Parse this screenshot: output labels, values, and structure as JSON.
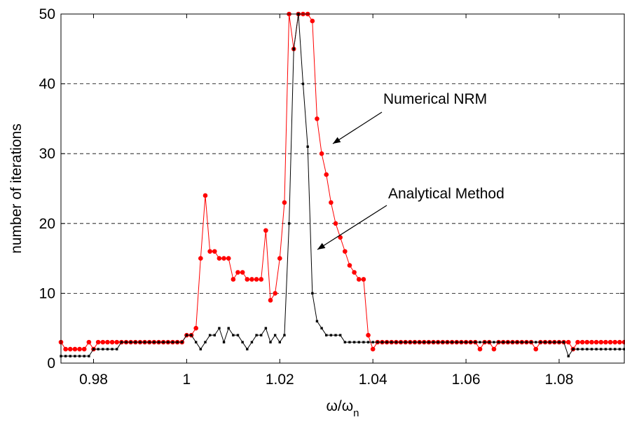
{
  "chart_data": {
    "type": "line",
    "xlabel": "ω/ω",
    "xlabel_subscript": "n",
    "ylabel": "number of iterations",
    "x": [
      0.973,
      0.974,
      0.975,
      0.976,
      0.977,
      0.978,
      0.979,
      0.98,
      0.981,
      0.982,
      0.983,
      0.984,
      0.985,
      0.986,
      0.987,
      0.988,
      0.989,
      0.99,
      0.991,
      0.992,
      0.993,
      0.994,
      0.995,
      0.996,
      0.997,
      0.998,
      0.999,
      1.0,
      1.001,
      1.002,
      1.003,
      1.004,
      1.005,
      1.006,
      1.007,
      1.008,
      1.009,
      1.01,
      1.011,
      1.012,
      1.013,
      1.014,
      1.015,
      1.016,
      1.017,
      1.018,
      1.019,
      1.02,
      1.021,
      1.022,
      1.023,
      1.024,
      1.025,
      1.026,
      1.027,
      1.028,
      1.029,
      1.03,
      1.031,
      1.032,
      1.033,
      1.034,
      1.035,
      1.036,
      1.037,
      1.038,
      1.039,
      1.04,
      1.041,
      1.042,
      1.043,
      1.044,
      1.045,
      1.046,
      1.047,
      1.048,
      1.049,
      1.05,
      1.051,
      1.052,
      1.053,
      1.054,
      1.055,
      1.056,
      1.057,
      1.058,
      1.059,
      1.06,
      1.061,
      1.062,
      1.063,
      1.064,
      1.065,
      1.066,
      1.067,
      1.068,
      1.069,
      1.07,
      1.071,
      1.072,
      1.073,
      1.074,
      1.075,
      1.076,
      1.077,
      1.078,
      1.079,
      1.08,
      1.081,
      1.082,
      1.083,
      1.084,
      1.085,
      1.086,
      1.087,
      1.088,
      1.089,
      1.09,
      1.091,
      1.092,
      1.093,
      1.094
    ],
    "series": [
      {
        "name": "Numerical NRM",
        "color": "#ff0000",
        "marker": "circle",
        "values": [
          3,
          2,
          2,
          2,
          2,
          2,
          3,
          2,
          3,
          3,
          3,
          3,
          3,
          3,
          3,
          3,
          3,
          3,
          3,
          3,
          3,
          3,
          3,
          3,
          3,
          3,
          3,
          4,
          4,
          5,
          15,
          24,
          16,
          16,
          15,
          15,
          15,
          12,
          13,
          13,
          12,
          12,
          12,
          12,
          19,
          9,
          10,
          15,
          23,
          50,
          45,
          50,
          50,
          50,
          49,
          35,
          30,
          27,
          23,
          20,
          18,
          16,
          14,
          13,
          12,
          12,
          4,
          2,
          3,
          3,
          3,
          3,
          3,
          3,
          3,
          3,
          3,
          3,
          3,
          3,
          3,
          3,
          3,
          3,
          3,
          3,
          3,
          3,
          3,
          3,
          2,
          3,
          3,
          2,
          3,
          3,
          3,
          3,
          3,
          3,
          3,
          3,
          2,
          3,
          3,
          3,
          3,
          3,
          3,
          3,
          2,
          3,
          3,
          3,
          3,
          3,
          3,
          3,
          3,
          3,
          3,
          3
        ]
      },
      {
        "name": "Analytical Method",
        "color": "#000000",
        "marker": "square",
        "values": [
          1,
          1,
          1,
          1,
          1,
          1,
          1,
          2,
          2,
          2,
          2,
          2,
          2,
          3,
          3,
          3,
          3,
          3,
          3,
          3,
          3,
          3,
          3,
          3,
          3,
          3,
          3,
          4,
          4,
          3,
          2,
          3,
          4,
          4,
          5,
          3,
          5,
          4,
          4,
          3,
          2,
          3,
          4,
          4,
          5,
          3,
          4,
          3,
          4,
          20,
          45,
          50,
          40,
          31,
          10,
          6,
          5,
          4,
          4,
          4,
          4,
          3,
          3,
          3,
          3,
          3,
          3,
          3,
          3,
          3,
          3,
          3,
          3,
          3,
          3,
          3,
          3,
          3,
          3,
          3,
          3,
          3,
          3,
          3,
          3,
          3,
          3,
          3,
          3,
          3,
          3,
          3,
          3,
          3,
          3,
          3,
          3,
          3,
          3,
          3,
          3,
          3,
          3,
          3,
          3,
          3,
          3,
          3,
          3,
          1,
          2,
          2,
          2,
          2,
          2,
          2,
          2,
          2,
          2,
          2,
          2,
          2
        ]
      }
    ],
    "annotations": [
      "Numerical NRM",
      "Analytical Method"
    ],
    "xlim": [
      0.973,
      1.094
    ],
    "xticks": [
      0.98,
      1,
      1.02,
      1.04,
      1.06,
      1.08
    ],
    "ylim": [
      0,
      50
    ],
    "yticks": [
      0,
      10,
      20,
      30,
      40,
      50
    ],
    "grid": "y-dashed"
  }
}
